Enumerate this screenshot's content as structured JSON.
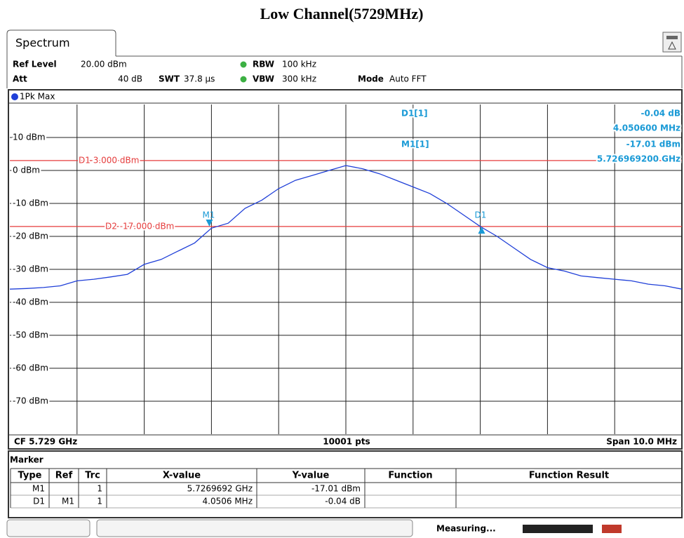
{
  "title": "Low Channel(5729MHz)",
  "header": {
    "tab": "Spectrum",
    "ref_level_label": "Ref Level",
    "ref_level": "20.00 dBm",
    "att_label": "Att",
    "att": "40 dB",
    "swt_label": "SWT",
    "swt": "37.8 µs",
    "rbw_label": "RBW",
    "rbw": "100 kHz",
    "vbw_label": "VBW",
    "vbw": "300 kHz",
    "mode_label": "Mode",
    "mode": "Auto FFT",
    "trace_label": "1Pk Max"
  },
  "chart_data": {
    "type": "line",
    "x": [
      5.724,
      5.72425,
      5.7245,
      5.72475,
      5.725,
      5.72525,
      5.7255,
      5.72575,
      5.726,
      5.72625,
      5.7265,
      5.72675,
      5.727,
      5.72725,
      5.7275,
      5.72775,
      5.728,
      5.72825,
      5.7285,
      5.72875,
      5.729,
      5.72925,
      5.7295,
      5.72975,
      5.73,
      5.73025,
      5.7305,
      5.73075,
      5.731,
      5.73125,
      5.7315,
      5.73175,
      5.732,
      5.73225,
      5.7325,
      5.73275,
      5.733,
      5.73325,
      5.7335,
      5.73375,
      5.734
    ],
    "series": [
      {
        "name": "1Pk Max",
        "color": "#1f3fd8",
        "values": [
          -36,
          -35.8,
          -35.5,
          -35,
          -33.5,
          -33,
          -32.3,
          -31.5,
          -28.5,
          -27,
          -24.5,
          -22,
          -17.5,
          -16,
          -11.5,
          -9,
          -5.5,
          -3,
          -1.5,
          0,
          1.5,
          0.5,
          -1,
          -3,
          -5,
          -7,
          -10,
          -13.5,
          -17,
          -20,
          -23.5,
          -27,
          -29.5,
          -30.5,
          -32,
          -32.5,
          -33,
          -33.5,
          -34.5,
          -35,
          -36
        ]
      }
    ],
    "xlim": [
      5.724,
      5.734
    ],
    "ylim": [
      -80,
      20
    ],
    "yticks": [
      {
        "value": 10,
        "label": "10 dBm"
      },
      {
        "value": 0,
        "label": "0 dBm"
      },
      {
        "value": -10,
        "label": "-10 dBm"
      },
      {
        "value": -20,
        "label": "-20 dBm"
      },
      {
        "value": -30,
        "label": "-30 dBm"
      },
      {
        "value": -40,
        "label": "-40 dBm"
      },
      {
        "value": -50,
        "label": "-50 dBm"
      },
      {
        "value": -60,
        "label": "-60 dBm"
      },
      {
        "value": -70,
        "label": "-70 dBm"
      }
    ],
    "grid": true,
    "lines": [
      {
        "label": "D1  3.000 dBm",
        "value": 3,
        "color": "#e53b3b"
      },
      {
        "label": "D2 -17.000 dBm",
        "value": -17,
        "color": "#e53b3b"
      }
    ],
    "markers": [
      {
        "name": "M1",
        "x": 5.7269692,
        "y": -17.01,
        "color": "#1a9ad6"
      },
      {
        "name": "D1",
        "x": 5.7310198,
        "y": -17.05,
        "color": "#1a9ad6"
      }
    ],
    "marker_info": [
      [
        "D1[1]",
        "-0.04 dB",
        "4.050600 MHz"
      ],
      [
        "M1[1]",
        "-17.01 dBm",
        "5.726969200 GHz"
      ]
    ],
    "footer": {
      "center_freq": "CF 5.729 GHz",
      "points": "10001 pts",
      "span": "Span 10.0 MHz"
    }
  },
  "marker_table": {
    "title": "Marker",
    "columns": [
      "Type",
      "Ref",
      "Trc",
      "X-value",
      "Y-value",
      "Function",
      "Function Result"
    ],
    "rows": [
      [
        "M1",
        null,
        "1",
        "5.7269692 GHz",
        "-17.01 dBm",
        null,
        null
      ],
      [
        "D1",
        "M1",
        "1",
        "4.0506 MHz",
        "-0.04 dB",
        null,
        null
      ]
    ]
  },
  "status": "Measuring..."
}
